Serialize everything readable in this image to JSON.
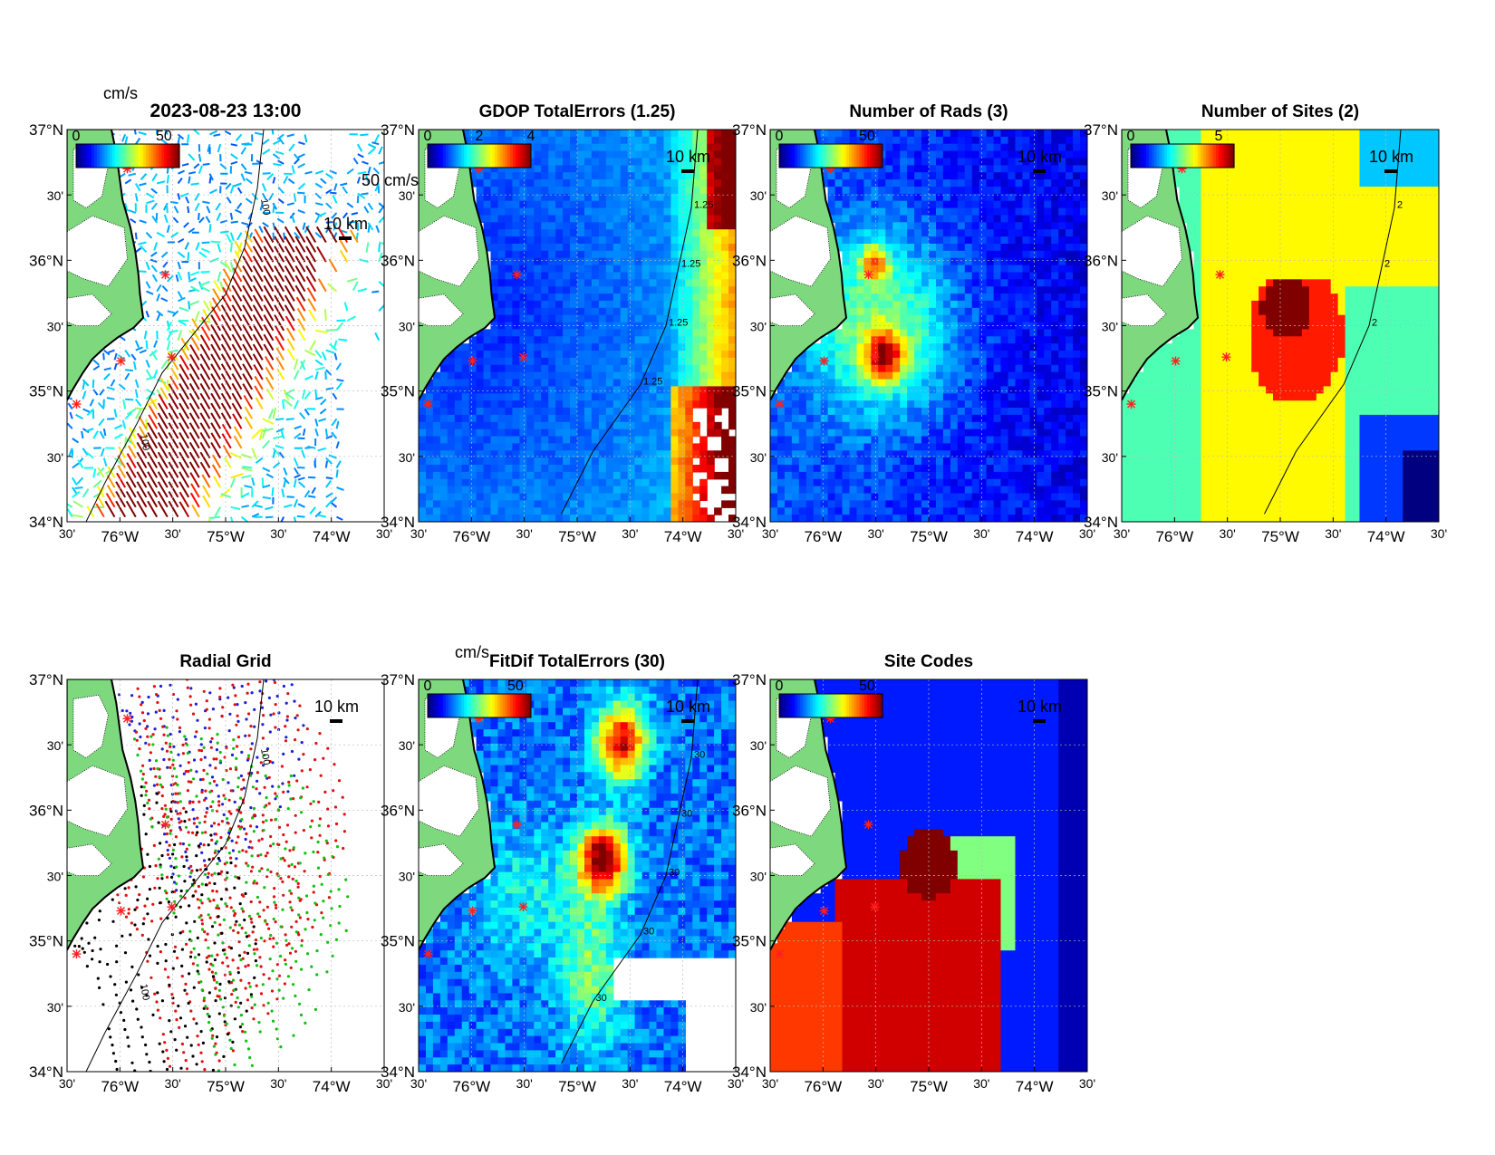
{
  "figure": {
    "panels": [
      {
        "id": "total-vectors",
        "title": "2023-08-23 13:00",
        "colorbar": {
          "unit": "cm/s",
          "ticks": [
            "0",
            "50"
          ]
        },
        "scale_arrow": "50 cm/s",
        "scale_bar": "10 km",
        "contour_labels": [
          "100",
          "100"
        ],
        "field": "vectors"
      },
      {
        "id": "gdop-total-errors",
        "title": "GDOP TotalErrors (1.25)",
        "colorbar": {
          "unit": "",
          "ticks": [
            "0",
            "2",
            "4"
          ]
        },
        "scale_bar": "10 km",
        "contour_labels": [
          "1.25",
          "1.25",
          "1.25",
          "1.25"
        ],
        "field": "gdop"
      },
      {
        "id": "number-of-rads",
        "title": "Number of Rads (3)",
        "colorbar": {
          "unit": "",
          "ticks": [
            "0",
            "50"
          ]
        },
        "scale_bar": "10 km",
        "contour_labels": [],
        "field": "rads"
      },
      {
        "id": "number-of-sites",
        "title": "Number of Sites (2)",
        "colorbar": {
          "unit": "",
          "ticks": [
            "0",
            "5"
          ]
        },
        "scale_bar": "10 km",
        "contour_labels": [
          "2",
          "2",
          "2"
        ],
        "field": "sites"
      },
      {
        "id": "radial-grid",
        "title": "Radial Grid",
        "colorbar": null,
        "scale_bar": "10 km",
        "contour_labels": [
          "100",
          "100"
        ],
        "field": "radial"
      },
      {
        "id": "fitdif-total-errors",
        "title": "FitDif TotalErrors (30)",
        "colorbar": {
          "unit": "cm/s",
          "ticks": [
            "0",
            "50"
          ]
        },
        "scale_bar": "10 km",
        "contour_labels": [
          "30",
          "30",
          "30",
          "30",
          "30"
        ],
        "field": "fitdif"
      },
      {
        "id": "site-codes",
        "title": "Site Codes",
        "colorbar": {
          "unit": "",
          "ticks": [
            "0",
            "50"
          ]
        },
        "scale_bar": "10 km",
        "contour_labels": [],
        "field": "sitecodes"
      }
    ],
    "axes": {
      "lat_ticks": [
        "37°N",
        "30'",
        "36°N",
        "30'",
        "35°N",
        "30'",
        "34°N"
      ],
      "lon_ticks": [
        "30'",
        "76°W",
        "30'",
        "75°W",
        "30'",
        "74°W",
        "30'"
      ],
      "lat_range": [
        34.0,
        37.0
      ],
      "lon_range": [
        -76.5,
        -73.5
      ]
    },
    "colors": {
      "land": "#7ed87e",
      "site_marker": "#ff2020",
      "radial_sites": [
        "#1f1fd0",
        "#e01010",
        "#10c010",
        "#000000"
      ]
    }
  }
}
